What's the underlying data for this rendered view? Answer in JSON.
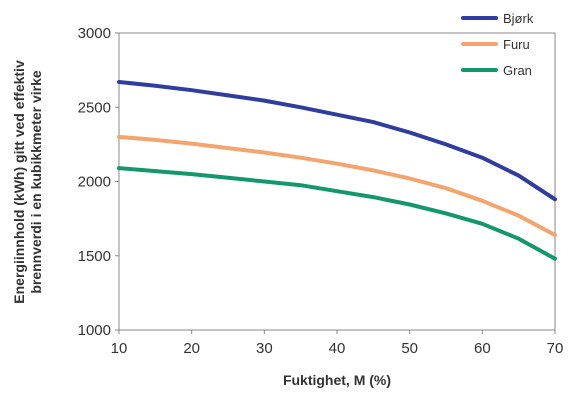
{
  "chart_data": {
    "type": "line",
    "title": "",
    "xlabel": "Fuktighet, M (%)",
    "ylabel_line1": "Energiinnhold (kWh) gitt ved effektiv",
    "ylabel_line2": "brennverdi i en kubikkmeter virke",
    "xlim": [
      10,
      70
    ],
    "ylim": [
      1000,
      3000
    ],
    "x_ticks": [
      10,
      20,
      30,
      40,
      50,
      60,
      70
    ],
    "y_ticks": [
      1000,
      1500,
      2000,
      2500,
      3000
    ],
    "grid": false,
    "legend_position": "top-right",
    "series": [
      {
        "name": "Bjørk",
        "color": "#2e3d9e",
        "x": [
          10,
          15,
          20,
          25,
          30,
          35,
          40,
          45,
          50,
          55,
          60,
          65,
          70
        ],
        "y": [
          2670,
          2645,
          2615,
          2580,
          2545,
          2500,
          2450,
          2400,
          2330,
          2250,
          2160,
          2040,
          1880
        ]
      },
      {
        "name": "Furu",
        "color": "#f4a46d",
        "x": [
          10,
          15,
          20,
          25,
          30,
          35,
          40,
          45,
          50,
          55,
          60,
          65,
          70
        ],
        "y": [
          2300,
          2280,
          2255,
          2225,
          2195,
          2160,
          2120,
          2075,
          2020,
          1955,
          1870,
          1770,
          1640
        ]
      },
      {
        "name": "Gran",
        "color": "#12986a",
        "x": [
          10,
          15,
          20,
          25,
          30,
          35,
          40,
          45,
          50,
          55,
          60,
          65,
          70
        ],
        "y": [
          2090,
          2070,
          2050,
          2025,
          2000,
          1975,
          1935,
          1895,
          1845,
          1785,
          1715,
          1615,
          1480
        ]
      }
    ]
  }
}
